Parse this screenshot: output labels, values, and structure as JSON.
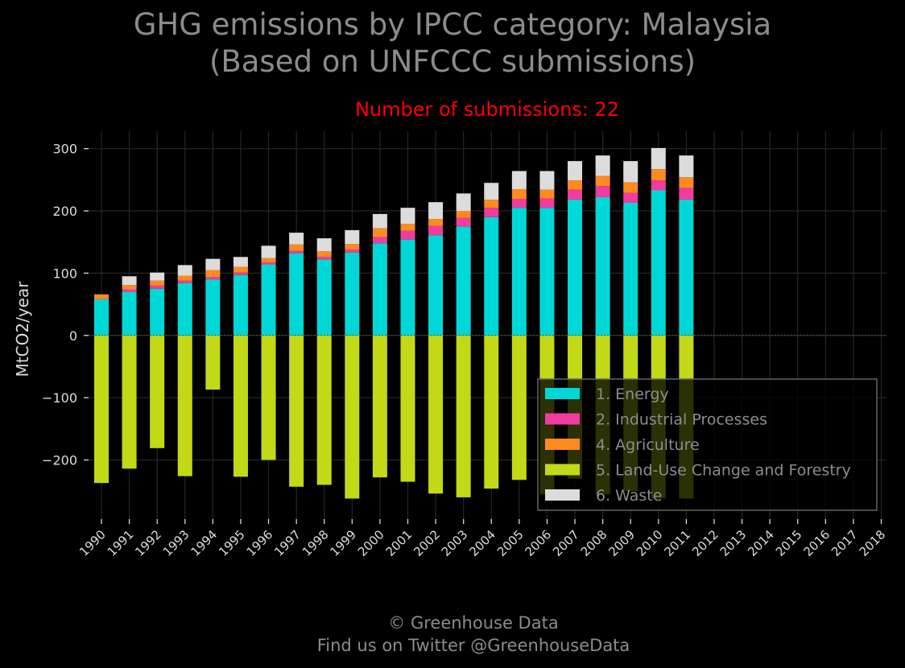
{
  "header": {
    "title_line1": "GHG emissions by IPCC category: Malaysia",
    "title_line2": "(Based on UNFCCC submissions)",
    "subtitle": "Number of submissions: 22"
  },
  "footer": {
    "line1": "© Greenhouse Data",
    "line2": "Find us on Twitter @GreenhouseData"
  },
  "colors": {
    "background": "#000000",
    "title": "#8c8c8c",
    "subtitle": "#ff0000",
    "grid": "#262626",
    "energy": "#00d8d8",
    "industrial": "#f03c9f",
    "agriculture": "#ff8a1e",
    "lulucf": "#c3d817",
    "waste": "#dcdcdc"
  },
  "chart_data": {
    "type": "bar",
    "stacked": true,
    "title": "GHG emissions by IPCC category: Malaysia (Based on UNFCCC submissions)",
    "ylabel": "MtCO2/year",
    "ylim": [
      -295,
      328
    ],
    "yticks": [
      300,
      200,
      100,
      0,
      -100,
      -200
    ],
    "ytick_labels": [
      "300",
      "200",
      "100",
      "0",
      "−100",
      "−200"
    ],
    "grid": true,
    "legend_position": "lower-right",
    "categories": [
      "1990",
      "1991",
      "1992",
      "1993",
      "1994",
      "1995",
      "1996",
      "1997",
      "1998",
      "1999",
      "2000",
      "2001",
      "2002",
      "2003",
      "2004",
      "2005",
      "2006",
      "2007",
      "2008",
      "2009",
      "2010",
      "2011",
      "2012",
      "2013",
      "2014",
      "2015",
      "2016",
      "2017",
      "2018"
    ],
    "series": [
      {
        "name": "1. Energy",
        "color": "#00d8d8",
        "values": [
          58,
          70,
          75,
          84,
          90,
          97,
          114,
          132,
          122,
          133,
          148,
          154,
          161,
          175,
          190,
          205,
          205,
          218,
          222,
          213,
          233,
          218,
          null,
          null,
          null,
          null,
          null,
          null,
          null
        ]
      },
      {
        "name": "2. Industrial Processes",
        "color": "#f03c9f",
        "values": [
          0,
          4,
          5,
          4,
          4,
          4,
          3,
          4,
          4,
          5,
          10,
          14,
          15,
          14,
          15,
          14,
          15,
          16,
          18,
          16,
          16,
          19,
          null,
          null,
          null,
          null,
          null,
          null,
          null
        ]
      },
      {
        "name": "4. Agriculture",
        "color": "#ff8a1e",
        "values": [
          8,
          7,
          8,
          8,
          11,
          9,
          7,
          10,
          9,
          9,
          14,
          11,
          11,
          11,
          13,
          16,
          14,
          15,
          16,
          17,
          18,
          17,
          null,
          null,
          null,
          null,
          null,
          null,
          null
        ]
      },
      {
        "name": "5. Land-Use Change and Forestry",
        "color": "#c3d817",
        "values": [
          -237,
          -214,
          -181,
          -226,
          -87,
          -227,
          -200,
          -243,
          -240,
          -262,
          -228,
          -235,
          -254,
          -260,
          -246,
          -232,
          -255,
          -230,
          -255,
          -250,
          -262,
          -262,
          null,
          null,
          null,
          null,
          null,
          null,
          null
        ]
      },
      {
        "name": "6. Waste",
        "color": "#dcdcdc",
        "values": [
          0,
          14,
          13,
          17,
          18,
          16,
          20,
          19,
          21,
          22,
          23,
          26,
          27,
          28,
          27,
          29,
          30,
          31,
          33,
          34,
          34,
          35,
          null,
          null,
          null,
          null,
          null,
          null,
          null
        ]
      }
    ]
  }
}
